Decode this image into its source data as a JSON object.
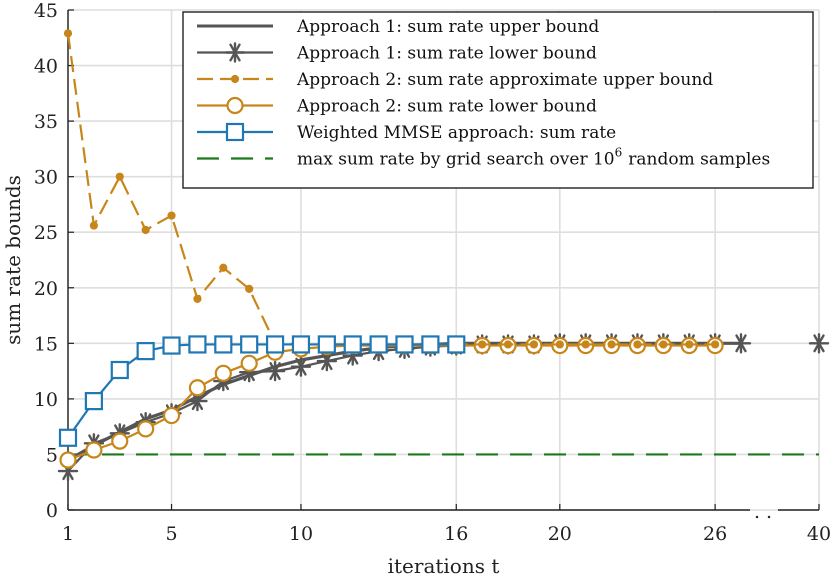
{
  "chart_data": {
    "type": "line",
    "xlabel": "iterations t",
    "ylabel": "sum rate bounds",
    "xlim": [
      1,
      40
    ],
    "ylim": [
      0,
      45
    ],
    "x_ticks": [
      1,
      5,
      10,
      16,
      20,
      26,
      40
    ],
    "y_ticks": [
      0,
      5,
      10,
      15,
      20,
      25,
      30,
      35,
      40,
      45
    ],
    "grid": true,
    "axis_break": {
      "between": [
        27,
        40
      ],
      "symbol": ". ."
    },
    "legend_position": "top-right",
    "series": [
      {
        "name": "Approach 1: sum rate upper bound",
        "color": "#555555",
        "style": "solid",
        "marker": "none",
        "x": [
          1,
          2,
          3,
          4,
          5,
          6,
          7,
          8,
          9,
          10,
          11,
          12,
          13,
          14,
          15,
          16,
          17,
          18,
          19,
          20,
          21,
          22,
          23,
          24,
          25,
          26,
          27,
          40
        ],
        "y": [
          4.5,
          5.8,
          7.0,
          8.2,
          9.0,
          10.2,
          11.3,
          12.1,
          12.9,
          13.5,
          13.9,
          14.3,
          14.6,
          14.8,
          14.9,
          15.0,
          15.0,
          15.0,
          15.0,
          15.0,
          15.0,
          15.0,
          15.0,
          15.0,
          15.0,
          15.0,
          15.0,
          15.0
        ]
      },
      {
        "name": "Approach 1: sum rate lower bound",
        "color": "#555555",
        "style": "solid",
        "marker": "asterisk",
        "x": [
          1,
          2,
          3,
          4,
          5,
          6,
          7,
          8,
          9,
          10,
          11,
          12,
          13,
          14,
          15,
          16,
          17,
          18,
          19,
          20,
          21,
          22,
          23,
          24,
          25,
          26,
          27,
          40
        ],
        "y": [
          3.5,
          6.0,
          6.9,
          7.9,
          8.7,
          9.8,
          11.6,
          12.4,
          12.5,
          12.9,
          13.4,
          13.9,
          14.3,
          14.5,
          14.7,
          14.8,
          14.9,
          14.9,
          14.9,
          15.0,
          15.0,
          15.0,
          15.0,
          15.0,
          15.0,
          15.0,
          15.0,
          15.0
        ]
      },
      {
        "name": "Approach 2: sum rate approximate upper bound",
        "color": "#c8861a",
        "style": "dashed",
        "marker": "dot",
        "x": [
          1,
          2,
          3,
          4,
          5,
          6,
          7,
          8,
          9,
          10,
          11,
          12,
          13,
          14,
          15,
          16,
          17,
          18,
          19,
          20,
          21,
          22,
          23,
          24,
          25,
          26
        ],
        "y": [
          42.9,
          25.6,
          30.0,
          25.2,
          26.5,
          19.0,
          21.8,
          19.9,
          15.0,
          14.9,
          14.9,
          14.9,
          14.9,
          14.9,
          14.9,
          14.9,
          14.9,
          14.9,
          14.9,
          14.9,
          14.9,
          14.9,
          14.9,
          14.9,
          14.9,
          14.9
        ]
      },
      {
        "name": "Approach 2: sum rate lower bound",
        "color": "#c8861a",
        "style": "solid",
        "marker": "circle",
        "x": [
          1,
          2,
          3,
          4,
          5,
          6,
          7,
          8,
          9,
          10,
          11,
          12,
          13,
          14,
          15,
          16,
          17,
          18,
          19,
          20,
          21,
          22,
          23,
          24,
          25,
          26
        ],
        "y": [
          4.5,
          5.4,
          6.2,
          7.3,
          8.5,
          11.0,
          12.3,
          13.2,
          14.2,
          14.5,
          14.7,
          14.8,
          14.8,
          14.8,
          14.8,
          14.8,
          14.8,
          14.8,
          14.8,
          14.8,
          14.8,
          14.8,
          14.8,
          14.8,
          14.8,
          14.8
        ]
      },
      {
        "name": "Weighted MMSE approach: sum rate",
        "color": "#1f77b4",
        "style": "solid",
        "marker": "square",
        "x": [
          1,
          2,
          3,
          4,
          5,
          6,
          7,
          8,
          9,
          10,
          11,
          12,
          13,
          14,
          15,
          16
        ],
        "y": [
          6.5,
          9.8,
          12.6,
          14.3,
          14.8,
          14.9,
          14.9,
          14.9,
          14.9,
          14.9,
          14.9,
          14.9,
          14.9,
          14.9,
          14.9,
          14.9
        ]
      },
      {
        "name": "max sum rate by grid search over 10",
        "name_superscript": "6",
        "name_suffix": "random samples",
        "color": "#1a7a1a",
        "style": "dashed",
        "marker": "none",
        "x": [
          1,
          40
        ],
        "y": [
          5.0,
          5.0
        ]
      }
    ]
  }
}
